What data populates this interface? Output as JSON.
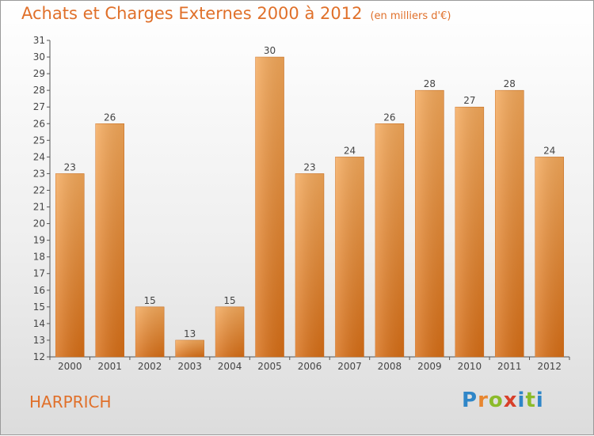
{
  "header": {
    "title": "Achats et Charges Externes 2000 à 2012",
    "subtitle": "(en milliers d'€)"
  },
  "commune": "HARPRICH",
  "logo": {
    "letters": [
      "P",
      "r",
      "o",
      "x",
      "i",
      "t",
      "i"
    ],
    "colors": [
      "#2f86c8",
      "#e8862f",
      "#8bbb2a",
      "#d8402a",
      "#2f86c8",
      "#8bbb2a",
      "#2f86c8"
    ]
  },
  "chart_data": {
    "type": "bar",
    "title": "Achats et Charges Externes 2000 à 2012",
    "subtitle": "(en milliers d'€)",
    "categories": [
      "2000",
      "2001",
      "2002",
      "2003",
      "2004",
      "2005",
      "2006",
      "2007",
      "2008",
      "2009",
      "2010",
      "2011",
      "2012"
    ],
    "values": [
      23,
      26,
      15,
      13,
      15,
      30,
      23,
      24,
      26,
      28,
      27,
      28,
      24
    ],
    "ylim": [
      12,
      31
    ],
    "yticks": [
      12,
      13,
      14,
      15,
      16,
      17,
      18,
      19,
      20,
      21,
      22,
      23,
      24,
      25,
      26,
      27,
      28,
      29,
      30,
      31
    ],
    "grid": false,
    "bar_color": "#f0903a"
  }
}
